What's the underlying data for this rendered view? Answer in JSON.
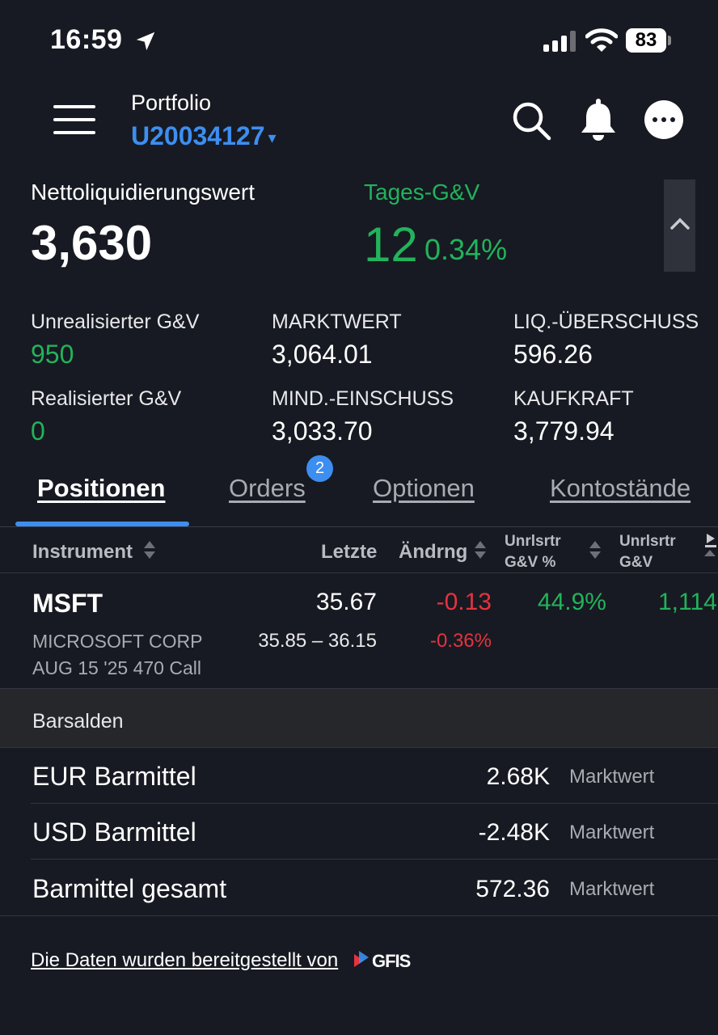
{
  "status_bar": {
    "time": "16:59",
    "battery": "83"
  },
  "header": {
    "portfolio_label": "Portfolio",
    "account_id": "U20034127",
    "caret": "▾"
  },
  "summary": {
    "nlv_label": "Nettoliquidierungswert",
    "nlv_value": "3,630",
    "daypl_label": "Tages-G&V",
    "daypl_value": "12",
    "daypl_pct": "0.34%"
  },
  "metrics": [
    {
      "label": "Unrealisierter G&V",
      "value": "950"
    },
    {
      "label": "MARKTWERT",
      "value": "3,064.01"
    },
    {
      "label": "LIQ.-ÜBERSCHUSS",
      "value": "596.26"
    },
    {
      "label": "Realisierter G&V",
      "value": "0"
    },
    {
      "label": "MIND.-EINSCHUSS",
      "value": "3,033.70"
    },
    {
      "label": "KAUFKRAFT",
      "value": "3,779.94"
    }
  ],
  "tabs": [
    {
      "label": "Positionen",
      "active": true
    },
    {
      "label": "Orders",
      "badge": "2"
    },
    {
      "label": "Optionen"
    },
    {
      "label": "Kontostände"
    }
  ],
  "table": {
    "headers": {
      "instrument": "Instrument",
      "last": "Letzte",
      "change": "Ändrng",
      "unr_pct_line1": "Unrlsrtr",
      "unr_pct_line2": "G&V %",
      "unr_line1": "Unrlsrtr",
      "unr_line2": "G&V"
    },
    "rows": [
      {
        "symbol": "MSFT",
        "last": "35.67",
        "change": "-0.13",
        "unr_pct": "44.9%",
        "unr": "1,114",
        "name": "MICROSOFT CORP",
        "range": "35.85 – 36.15",
        "change_pct": "-0.36%",
        "contract": "AUG 15 '25 470 Call"
      }
    ]
  },
  "cash": {
    "title": "Barsalden",
    "rows": [
      {
        "label": "EUR Barmittel",
        "value": "2.68K",
        "sub": "Marktwert"
      },
      {
        "label": "USD Barmittel",
        "value": "-2.48K",
        "sub": "Marktwert"
      },
      {
        "label": "Barmittel gesamt",
        "value": "572.36",
        "sub": "Marktwert"
      }
    ]
  },
  "footer": {
    "text": "Die Daten wurden bereitgestellt von",
    "logo": "GFIS"
  },
  "colors": {
    "accent": "#3d8ef0",
    "positive": "#22b35b",
    "negative": "#e5333f",
    "background": "#171a22"
  }
}
